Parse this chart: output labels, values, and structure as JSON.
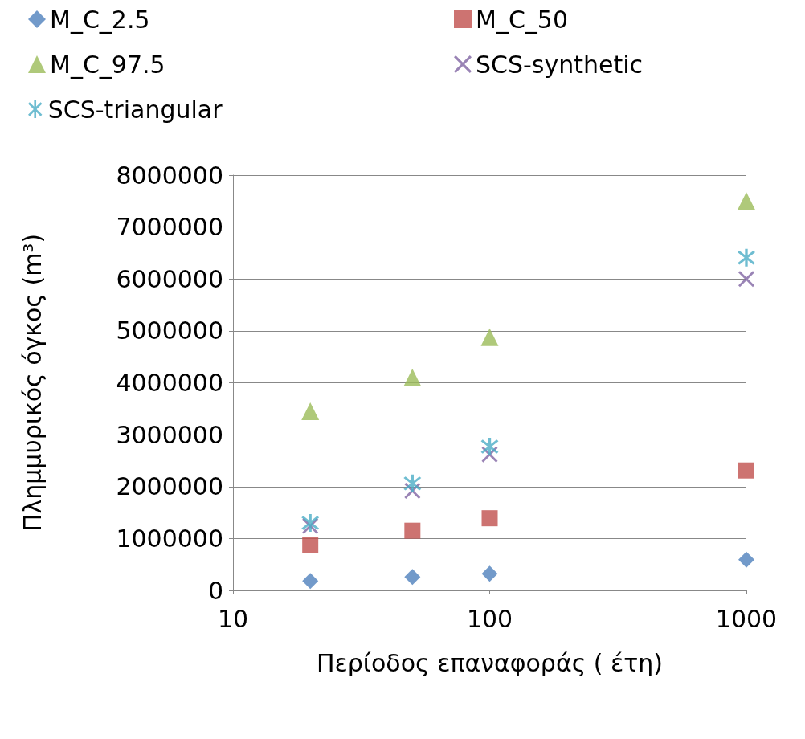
{
  "chart_data": {
    "type": "scatter",
    "xlabel": "Περίοδος επαναφοράς ( έτη)",
    "ylabel": "Πλημμυρικός όγκος (m³)",
    "x": [
      20,
      50,
      100,
      1000
    ],
    "series": [
      {
        "name": "M_C_2.5",
        "color": "#4f81bd",
        "marker": "diamond",
        "values": [
          180000,
          260000,
          320000,
          590000
        ]
      },
      {
        "name": "M_C_50",
        "color": "#c0504d",
        "marker": "square",
        "values": [
          880000,
          1150000,
          1390000,
          2310000
        ]
      },
      {
        "name": "M_C_97.5",
        "color": "#9bbb59",
        "marker": "triangle",
        "values": [
          3450000,
          4100000,
          4880000,
          7500000
        ]
      },
      {
        "name": "SCS-synthetic",
        "color": "#8064a2",
        "marker": "cross",
        "values": [
          1240000,
          1920000,
          2620000,
          6000000
        ]
      },
      {
        "name": "SCS-triangular",
        "color": "#4bacc6",
        "marker": "star",
        "values": [
          1300000,
          2060000,
          2770000,
          6410000
        ]
      }
    ],
    "log": "x",
    "xlim": [
      10,
      1000
    ],
    "xticks": [
      10,
      100,
      1000
    ],
    "ylim": [
      0,
      8000000
    ],
    "yticks": [
      0,
      1000000,
      2000000,
      3000000,
      4000000,
      5000000,
      6000000,
      7000000,
      8000000
    ],
    "grid": "y",
    "legend": "top"
  }
}
